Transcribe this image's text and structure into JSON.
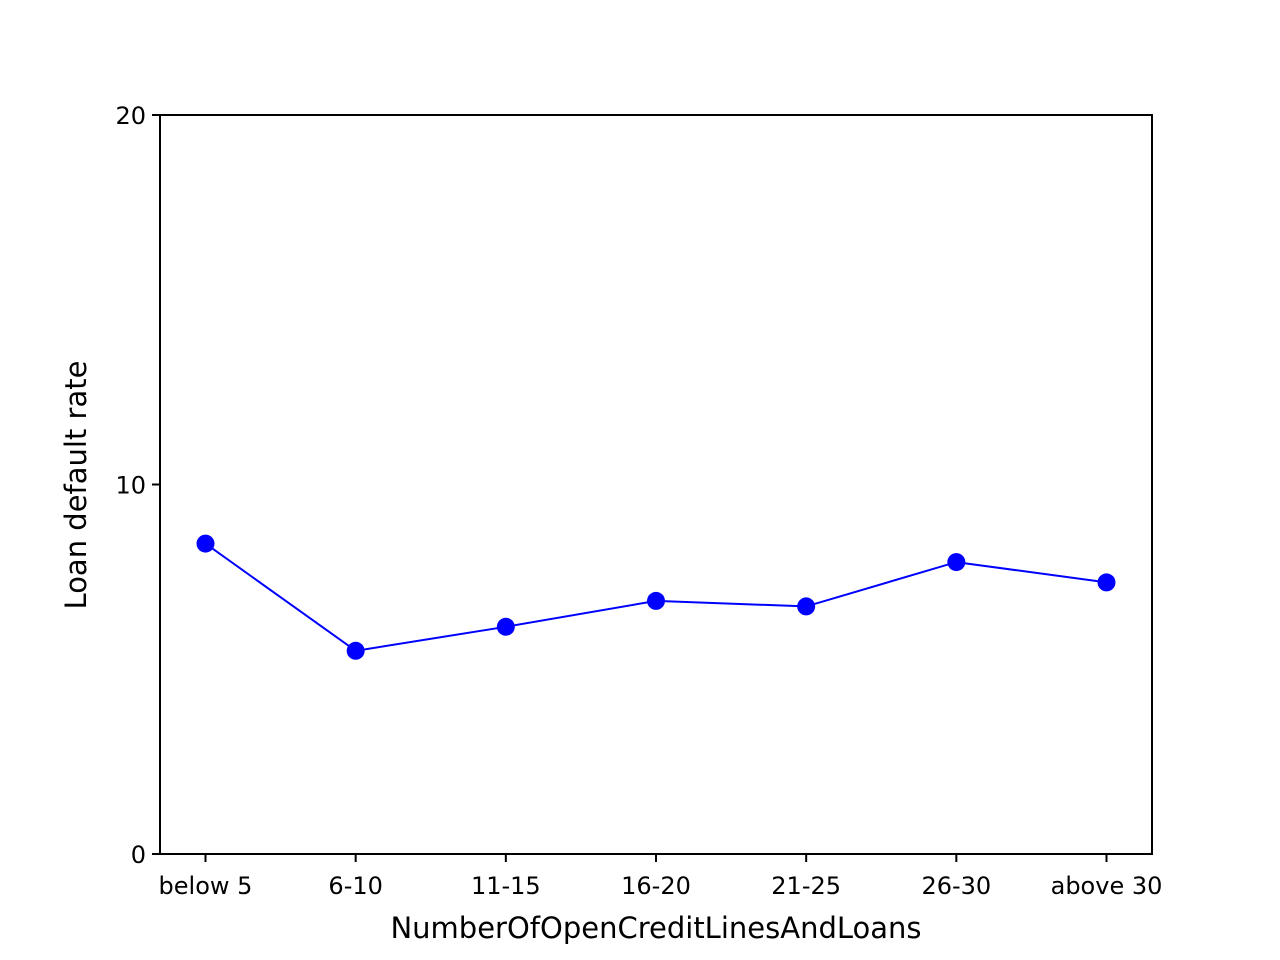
{
  "chart_data": {
    "type": "line",
    "title": "",
    "xlabel": "NumberOfOpenCreditLinesAndLoans",
    "ylabel": "Loan default rate",
    "categories": [
      "below 5",
      "6-10",
      "11-15",
      "16-20",
      "21-25",
      "26-30",
      "above 30"
    ],
    "series": [
      {
        "values": [
          8.4,
          5.5,
          6.15,
          6.85,
          6.7,
          7.9,
          7.35
        ],
        "color": "#0000ff",
        "marker": "circle"
      }
    ],
    "ylim": [
      0,
      20
    ],
    "yticks": [
      0,
      10,
      20
    ],
    "grid": false,
    "legend": "none"
  }
}
